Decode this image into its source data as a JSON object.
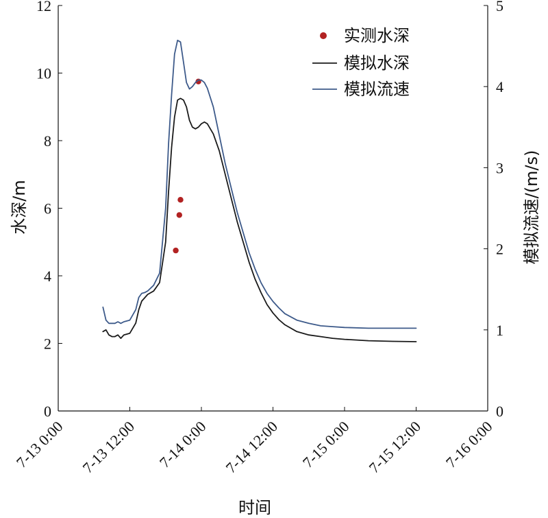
{
  "chart_data": {
    "type": "line",
    "xlabel": "时间",
    "ylabel_left": "水深/m",
    "ylabel_right": "模拟流速/(m/s)",
    "x_ticks": [
      "7-13 0:00",
      "7-13 12:00",
      "7-14 0:00",
      "7-14 12:00",
      "7-15 0:00",
      "7-15 12:00",
      "7-16 0:00"
    ],
    "xlim_hours": [
      0,
      72
    ],
    "ylim_left": [
      0,
      12
    ],
    "ylim_right": [
      0,
      5
    ],
    "y_ticks_left": [
      "0",
      "2",
      "4",
      "6",
      "8",
      "10",
      "12"
    ],
    "y_ticks_right": [
      "0",
      "1",
      "2",
      "3",
      "4",
      "5"
    ],
    "legend_position": "top-right",
    "series": [
      {
        "name": "实测水深",
        "kind": "scatter",
        "axis": "left",
        "color": "#b22222",
        "x": [
          19.7,
          20.3,
          20.5,
          23.5
        ],
        "y": [
          4.75,
          5.8,
          6.25,
          9.75
        ]
      },
      {
        "name": "模拟水深",
        "kind": "line",
        "axis": "left",
        "color": "#1a1a1a",
        "x": [
          7.5,
          8.0,
          8.5,
          9.0,
          9.5,
          10.0,
          10.5,
          11.0,
          12.0,
          13.0,
          13.5,
          14.0,
          14.5,
          15.0,
          16.0,
          17.0,
          18.0,
          18.5,
          19.0,
          19.5,
          20.0,
          20.5,
          21.0,
          21.5,
          22.0,
          22.5,
          23.0,
          23.5,
          24.0,
          24.5,
          25.0,
          26.0,
          27.0,
          28.0,
          29.0,
          30.0,
          31.0,
          32.0,
          33.0,
          34.0,
          35.0,
          36.0,
          37.0,
          38.0,
          40.0,
          42.0,
          44.0,
          46.0,
          48.0,
          52.0,
          56.0,
          60.0
        ],
        "y": [
          2.35,
          2.4,
          2.25,
          2.2,
          2.2,
          2.25,
          2.15,
          2.25,
          2.3,
          2.6,
          3.0,
          3.25,
          3.35,
          3.45,
          3.55,
          3.8,
          5.0,
          6.5,
          7.8,
          8.7,
          9.2,
          9.25,
          9.2,
          9.0,
          8.6,
          8.4,
          8.35,
          8.4,
          8.5,
          8.55,
          8.5,
          8.2,
          7.7,
          7.0,
          6.3,
          5.6,
          5.0,
          4.4,
          3.9,
          3.5,
          3.15,
          2.9,
          2.7,
          2.55,
          2.35,
          2.25,
          2.2,
          2.15,
          2.12,
          2.08,
          2.06,
          2.05
        ]
      },
      {
        "name": "模拟流速",
        "kind": "line",
        "axis": "right",
        "color": "#3d5a8a",
        "x": [
          7.5,
          8.0,
          8.5,
          9.0,
          9.5,
          10.0,
          10.5,
          11.0,
          12.0,
          13.0,
          13.5,
          14.0,
          14.5,
          15.0,
          16.0,
          17.0,
          18.0,
          18.5,
          19.0,
          19.5,
          20.0,
          20.5,
          21.0,
          21.5,
          22.0,
          22.5,
          23.0,
          23.5,
          24.0,
          24.5,
          25.0,
          26.0,
          27.0,
          28.0,
          29.0,
          30.0,
          31.0,
          32.0,
          33.0,
          34.0,
          35.0,
          36.0,
          37.0,
          38.0,
          40.0,
          42.0,
          44.0,
          46.0,
          48.0,
          52.0,
          56.0,
          60.0
        ],
        "y": [
          1.28,
          1.12,
          1.08,
          1.08,
          1.08,
          1.1,
          1.08,
          1.1,
          1.12,
          1.25,
          1.4,
          1.45,
          1.46,
          1.48,
          1.55,
          1.7,
          2.5,
          3.3,
          3.9,
          4.4,
          4.57,
          4.55,
          4.3,
          4.05,
          3.97,
          4.0,
          4.05,
          4.08,
          4.08,
          4.05,
          3.98,
          3.75,
          3.4,
          3.05,
          2.75,
          2.45,
          2.2,
          1.95,
          1.75,
          1.58,
          1.45,
          1.35,
          1.27,
          1.2,
          1.12,
          1.08,
          1.05,
          1.04,
          1.03,
          1.02,
          1.02,
          1.02
        ]
      }
    ]
  }
}
